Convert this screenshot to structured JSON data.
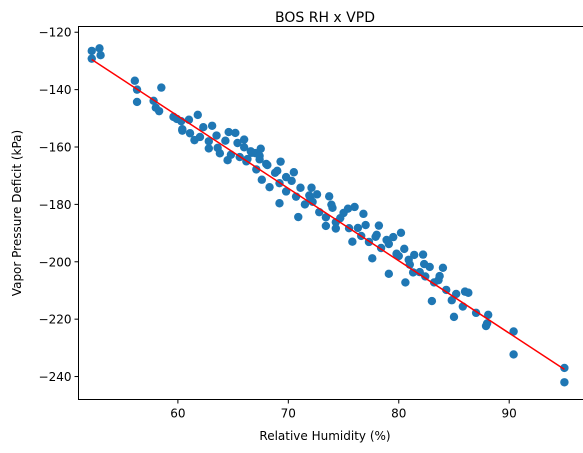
{
  "chart_data": {
    "type": "scatter",
    "title": "BOS RH x VPD",
    "xlabel": "Relative Humidity (%)",
    "ylabel": "Vapor Pressure Deficit (kPa)",
    "xlim": [
      51.0,
      97.0
    ],
    "ylim": [
      -248,
      -118
    ],
    "xticks": [
      60,
      70,
      80,
      90
    ],
    "yticks": [
      -120,
      -140,
      -160,
      -180,
      -200,
      -220,
      -240
    ],
    "grid": false,
    "legend": "none",
    "series": [
      {
        "type": "scatter",
        "color": "#1f77b4",
        "points": [
          [
            52.2,
            -126.5
          ],
          [
            52.2,
            -129.2
          ],
          [
            52.9,
            -125.6
          ],
          [
            53.0,
            -128.0
          ],
          [
            56.1,
            -136.9
          ],
          [
            56.3,
            -140.0
          ],
          [
            56.3,
            -144.3
          ],
          [
            57.8,
            -143.9
          ],
          [
            58.0,
            -146.3
          ],
          [
            58.5,
            -139.3
          ],
          [
            58.3,
            -147.5
          ],
          [
            59.6,
            -149.5
          ],
          [
            59.9,
            -150.2
          ],
          [
            60.3,
            -151.0
          ],
          [
            60.4,
            -154.3
          ],
          [
            61.1,
            -155.2
          ],
          [
            61.8,
            -148.8
          ],
          [
            62.0,
            -156.5
          ],
          [
            62.3,
            -153.1
          ],
          [
            62.8,
            -158.0
          ],
          [
            63.5,
            -156.0
          ],
          [
            63.6,
            -160.3
          ],
          [
            64.3,
            -157.8
          ],
          [
            64.8,
            -162.7
          ],
          [
            65.2,
            -155.1
          ],
          [
            65.6,
            -163.5
          ],
          [
            66.0,
            -160.1
          ],
          [
            66.2,
            -165.0
          ],
          [
            66.7,
            -162.0
          ],
          [
            67.1,
            -167.8
          ],
          [
            67.4,
            -164.3
          ],
          [
            67.6,
            -171.4
          ],
          [
            68.0,
            -165.9
          ],
          [
            68.3,
            -174.0
          ],
          [
            68.8,
            -169.0
          ],
          [
            69.2,
            -172.6
          ],
          [
            69.8,
            -175.5
          ],
          [
            70.3,
            -171.8
          ],
          [
            70.7,
            -177.3
          ],
          [
            71.1,
            -174.2
          ],
          [
            71.5,
            -180.0
          ],
          [
            72.0,
            -178.1
          ],
          [
            72.6,
            -176.5
          ],
          [
            72.8,
            -182.7
          ],
          [
            73.4,
            -184.5
          ],
          [
            74.0,
            -181.2
          ],
          [
            74.3,
            -186.2
          ],
          [
            75.0,
            -183.0
          ],
          [
            75.5,
            -188.3
          ],
          [
            76.0,
            -180.9
          ],
          [
            76.6,
            -191.0
          ],
          [
            77.0,
            -187.2
          ],
          [
            77.3,
            -193.1
          ],
          [
            78.0,
            -190.6
          ],
          [
            78.4,
            -195.2
          ],
          [
            79.1,
            -193.8
          ],
          [
            79.5,
            -191.4
          ],
          [
            80.0,
            -198.0
          ],
          [
            80.5,
            -195.5
          ],
          [
            81.0,
            -201.0
          ],
          [
            81.4,
            -197.6
          ],
          [
            81.9,
            -203.6
          ],
          [
            82.4,
            -205.1
          ],
          [
            82.8,
            -201.8
          ],
          [
            83.2,
            -207.2
          ],
          [
            83.7,
            -205.0
          ],
          [
            84.3,
            -209.8
          ],
          [
            84.8,
            -213.4
          ],
          [
            85.2,
            -211.2
          ],
          [
            85.8,
            -215.6
          ],
          [
            86.0,
            -210.4
          ],
          [
            87.0,
            -217.8
          ],
          [
            87.9,
            -222.4
          ],
          [
            88.1,
            -218.5
          ],
          [
            90.4,
            -224.3
          ],
          [
            90.4,
            -232.3
          ],
          [
            95.0,
            -237.0
          ],
          [
            95.0,
            -242.0
          ],
          [
            67.0,
            -162.1
          ],
          [
            67.4,
            -163.1
          ],
          [
            66.6,
            -161.5
          ],
          [
            68.1,
            -166.3
          ],
          [
            66.3,
            -164.2
          ],
          [
            65.4,
            -158.6
          ],
          [
            69.0,
            -168.3
          ],
          [
            69.8,
            -170.5
          ],
          [
            71.9,
            -176.9
          ],
          [
            72.2,
            -179.1
          ],
          [
            73.9,
            -180.1
          ],
          [
            74.7,
            -184.8
          ],
          [
            76.3,
            -188.2
          ],
          [
            77.9,
            -191.3
          ],
          [
            78.9,
            -192.4
          ],
          [
            79.8,
            -197.2
          ],
          [
            80.9,
            -199.3
          ],
          [
            81.3,
            -203.7
          ],
          [
            82.3,
            -200.8
          ],
          [
            83.6,
            -206.4
          ],
          [
            69.2,
            -179.6
          ],
          [
            70.9,
            -184.4
          ],
          [
            74.3,
            -188.4
          ],
          [
            75.8,
            -193.0
          ],
          [
            73.4,
            -187.5
          ],
          [
            77.6,
            -198.8
          ],
          [
            79.1,
            -204.2
          ],
          [
            80.6,
            -207.2
          ],
          [
            64.5,
            -164.6
          ],
          [
            63.8,
            -162.2
          ],
          [
            62.8,
            -160.5
          ],
          [
            61.5,
            -157.6
          ],
          [
            60.4,
            -153.8
          ],
          [
            61.0,
            -150.5
          ],
          [
            63.1,
            -152.6
          ],
          [
            64.6,
            -154.8
          ],
          [
            66.0,
            -157.4
          ],
          [
            67.5,
            -160.6
          ],
          [
            69.3,
            -165.1
          ],
          [
            70.5,
            -168.8
          ],
          [
            72.1,
            -174.2
          ],
          [
            73.7,
            -177.2
          ],
          [
            75.4,
            -181.5
          ],
          [
            76.8,
            -183.3
          ],
          [
            78.2,
            -187.4
          ],
          [
            80.2,
            -189.9
          ],
          [
            82.2,
            -197.5
          ],
          [
            84.0,
            -202.1
          ],
          [
            86.3,
            -210.8
          ],
          [
            83.0,
            -213.7
          ],
          [
            85.0,
            -219.2
          ],
          [
            88.0,
            -221.5
          ]
        ]
      },
      {
        "type": "line",
        "color": "#ff0000",
        "points": [
          [
            52.2,
            -129.5
          ],
          [
            95.0,
            -237.5
          ]
        ]
      }
    ]
  }
}
